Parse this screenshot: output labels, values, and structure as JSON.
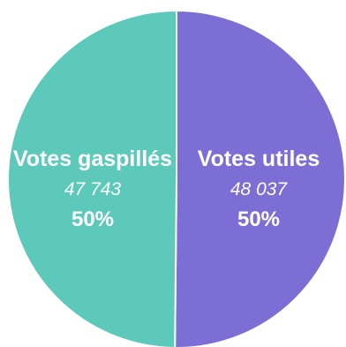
{
  "chart_data": {
    "type": "pie",
    "slices": [
      {
        "label": "Votes gaspillés",
        "value": 47743,
        "value_text": "47 743",
        "percent_text": "50%",
        "color": "#5DC9BA"
      },
      {
        "label": "Votes utiles",
        "value": 48037,
        "value_text": "48 037",
        "percent_text": "50%",
        "color": "#7D6ED6"
      }
    ]
  }
}
